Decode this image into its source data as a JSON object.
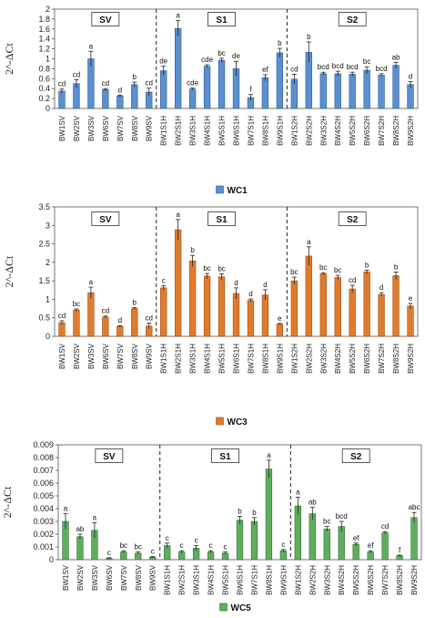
{
  "chart_data": [
    {
      "type": "bar",
      "ylabel": "2^-ΔCt",
      "ylim": [
        0,
        2
      ],
      "yticks": [
        0,
        0.2,
        0.4,
        0.6,
        0.8,
        1,
        1.2,
        1.4,
        1.6,
        1.8,
        2
      ],
      "ytick_labels": [
        "0",
        "0.2",
        "0.4",
        "0.6",
        "0.8",
        "1",
        "1.2",
        "1.4",
        "1.6",
        "1.8",
        "2"
      ],
      "legend": "WC1",
      "legend_position": "bottom",
      "color": "#5b8fd0",
      "stroke": "#2e5a94",
      "groups": [
        "SV",
        "S1",
        "S2"
      ],
      "categories": [
        "BW1SV",
        "BW2SV",
        "BW3SV",
        "BW6SV",
        "BW7SV",
        "BW8SV",
        "BW9SV",
        "BW1S1H",
        "BW2S1H",
        "BW3S1H",
        "BW4S1H",
        "BW5S1H",
        "BW6S1H",
        "BW7S1H",
        "BW8S1H",
        "BW9S1H",
        "BW1S2H",
        "BW2S2H",
        "BW3S2H",
        "BW4S2H",
        "BW5S2H",
        "BW6S2H",
        "BW7S2H",
        "BW8S2H",
        "BW9S2H"
      ],
      "values": [
        0.35,
        0.5,
        1.0,
        0.38,
        0.25,
        0.48,
        0.33,
        0.76,
        1.61,
        0.39,
        0.85,
        0.97,
        0.8,
        0.22,
        0.62,
        1.12,
        0.59,
        1.13,
        0.7,
        0.7,
        0.69,
        0.77,
        0.67,
        0.87,
        0.48
      ],
      "errors": [
        0.04,
        0.08,
        0.15,
        0.02,
        0.02,
        0.05,
        0.08,
        0.09,
        0.16,
        0.02,
        0.03,
        0.04,
        0.15,
        0.06,
        0.06,
        0.09,
        0.1,
        0.21,
        0.03,
        0.05,
        0.04,
        0.07,
        0.03,
        0.06,
        0.06
      ],
      "letters": [
        "cd",
        "cd",
        "a",
        "cd",
        "d",
        "b",
        "cd",
        "de",
        "a",
        "cde",
        "cde",
        "bc",
        "de",
        "f",
        "ef",
        "b",
        "cd",
        "b",
        "bcd",
        "bcd",
        "bcd",
        "bc",
        "bcd",
        "ab",
        "d"
      ]
    },
    {
      "type": "bar",
      "ylabel": "2^-ΔCt",
      "ylim": [
        0,
        3.5
      ],
      "yticks": [
        0,
        0.5,
        1,
        1.5,
        2,
        2.5,
        3,
        3.5
      ],
      "ytick_labels": [
        "0",
        "0.5",
        "1",
        "1.5",
        "2",
        "2.5",
        "3",
        "3.5"
      ],
      "legend": "WC3",
      "legend_position": "bottom",
      "color": "#e07b2e",
      "stroke": "#9e4f14",
      "groups": [
        "SV",
        "S1",
        "S2"
      ],
      "categories": [
        "BW1SV",
        "BW2SV",
        "BW3SV",
        "BW6SV",
        "BW7SV",
        "BW8SV",
        "BW9SV",
        "BW1S1H",
        "BW2S1H",
        "BW3S1H",
        "BW4S1H",
        "BW5S1H",
        "BW6S1H",
        "BW7S1H",
        "BW8S1H",
        "BW9S1H",
        "BW1S2H",
        "BW2S2H",
        "BW3S2H",
        "BW4S2H",
        "BW5S2H",
        "BW6S2H",
        "BW7S2H",
        "BW8S2H",
        "BW9S2H"
      ],
      "values": [
        0.37,
        0.71,
        1.18,
        0.52,
        0.27,
        0.75,
        0.28,
        1.31,
        2.88,
        2.04,
        1.63,
        1.61,
        1.16,
        0.97,
        1.12,
        0.33,
        1.5,
        2.17,
        1.69,
        1.59,
        1.28,
        1.74,
        1.13,
        1.64,
        0.82
      ],
      "errors": [
        0.05,
        0.03,
        0.15,
        0.03,
        0.02,
        0.03,
        0.08,
        0.06,
        0.28,
        0.15,
        0.07,
        0.08,
        0.15,
        0.04,
        0.14,
        0.02,
        0.1,
        0.25,
        0.03,
        0.06,
        0.1,
        0.05,
        0.05,
        0.1,
        0.07
      ],
      "letters": [
        "cd",
        "bc",
        "a",
        "cd",
        "d",
        "b",
        "cd",
        "c",
        "a",
        "b",
        "bc",
        "bc",
        "d",
        "d",
        "d",
        "e",
        "bc",
        "a",
        "bc",
        "bc",
        "cd",
        "b",
        "d",
        "b",
        "e"
      ]
    },
    {
      "type": "bar",
      "ylabel": "2^-ΔCt",
      "ylim": [
        0,
        0.009
      ],
      "yticks": [
        0,
        0.001,
        0.002,
        0.003,
        0.004,
        0.005,
        0.006,
        0.007,
        0.008,
        0.009
      ],
      "ytick_labels": [
        "0",
        "0.001",
        "0.002",
        "0.003",
        "0.004",
        "0.005",
        "0.006",
        "0.007",
        "0.008",
        "0.009"
      ],
      "legend": "WC5",
      "legend_position": "bottom",
      "color": "#5fae5f",
      "stroke": "#2f6f2f",
      "groups": [
        "SV",
        "S1",
        "S2"
      ],
      "categories": [
        "BW1SV",
        "BW2SV",
        "BW3SV",
        "BW6SV",
        "BW7SV",
        "BW8SV",
        "BW9SV",
        "BW1S1H",
        "BW2S1H",
        "BW3S1H",
        "BW4S1H",
        "BW5S1H",
        "BW6S1H",
        "BW7S1H",
        "BW8S1H",
        "BW9S1H",
        "BW1S2H",
        "BW2S2H",
        "BW3S2H",
        "BW4S2H",
        "BW5S2H",
        "BW6S2H",
        "BW7S2H",
        "BW8S2H",
        "BW9S2H"
      ],
      "values": [
        0.003,
        0.0018,
        0.0023,
        0.0001,
        0.0006,
        0.0005,
        0.0002,
        0.0011,
        0.0006,
        0.0009,
        0.0006,
        0.0005,
        0.0031,
        0.003,
        0.0071,
        0.0007,
        0.0042,
        0.0036,
        0.0024,
        0.0026,
        0.0012,
        0.0006,
        0.0021,
        0.0003,
        0.0033
      ],
      "errors": [
        0.0006,
        0.0002,
        0.0006,
        5e-05,
        0.0001,
        0.0001,
        5e-05,
        0.0002,
        0.0001,
        0.0002,
        0.0001,
        0.0001,
        0.0003,
        0.0003,
        0.0007,
        0.0001,
        0.0007,
        0.0005,
        0.0002,
        0.0004,
        0.0001,
        0.0001,
        0.0001,
        5e-05,
        0.0004
      ],
      "letters": [
        "a",
        "ab",
        "a",
        "c",
        "bc",
        "bc",
        "c",
        "c",
        "c",
        "c",
        "c",
        "c",
        "b",
        "b",
        "a",
        "c",
        "a",
        "ab",
        "bc",
        "bcd",
        "ef",
        "ef",
        "cd",
        "f",
        "abc"
      ]
    }
  ]
}
